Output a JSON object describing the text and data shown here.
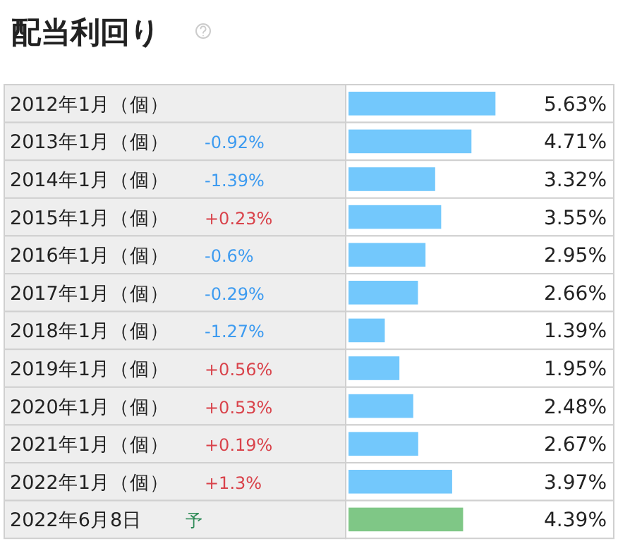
{
  "chart_data": {
    "type": "bar",
    "orientation": "horizontal",
    "title": "配当利回り",
    "categories": [
      "2012年1月（個）",
      "2013年1月（個）",
      "2014年1月（個）",
      "2015年1月（個）",
      "2016年1月（個）",
      "2017年1月（個）",
      "2018年1月（個）",
      "2019年1月（個）",
      "2020年1月（個）",
      "2021年1月（個）",
      "2022年1月（個）",
      "2022年6月8日"
    ],
    "values": [
      5.63,
      4.71,
      3.32,
      3.55,
      2.95,
      2.66,
      1.39,
      1.95,
      2.48,
      2.67,
      3.97,
      4.39
    ],
    "colors": [
      "#73c8fc",
      "#73c8fc",
      "#73c8fc",
      "#73c8fc",
      "#73c8fc",
      "#73c8fc",
      "#73c8fc",
      "#73c8fc",
      "#73c8fc",
      "#73c8fc",
      "#73c8fc",
      "#7fc786"
    ],
    "value_labels": [
      "5.63%",
      "4.71%",
      "3.32%",
      "3.55%",
      "2.95%",
      "2.66%",
      "1.39%",
      "1.95%",
      "2.48%",
      "2.67%",
      "3.97%",
      "4.39%"
    ],
    "xlim": [
      0,
      10
    ],
    "annotations": [
      "-0.92%",
      "-1.39%",
      "+0.23%",
      "-0.6%",
      "-0.29%",
      "-1.27%",
      "+0.56%",
      "+0.53%",
      "+0.19%",
      "+1.3%",
      "予"
    ]
  }
}
